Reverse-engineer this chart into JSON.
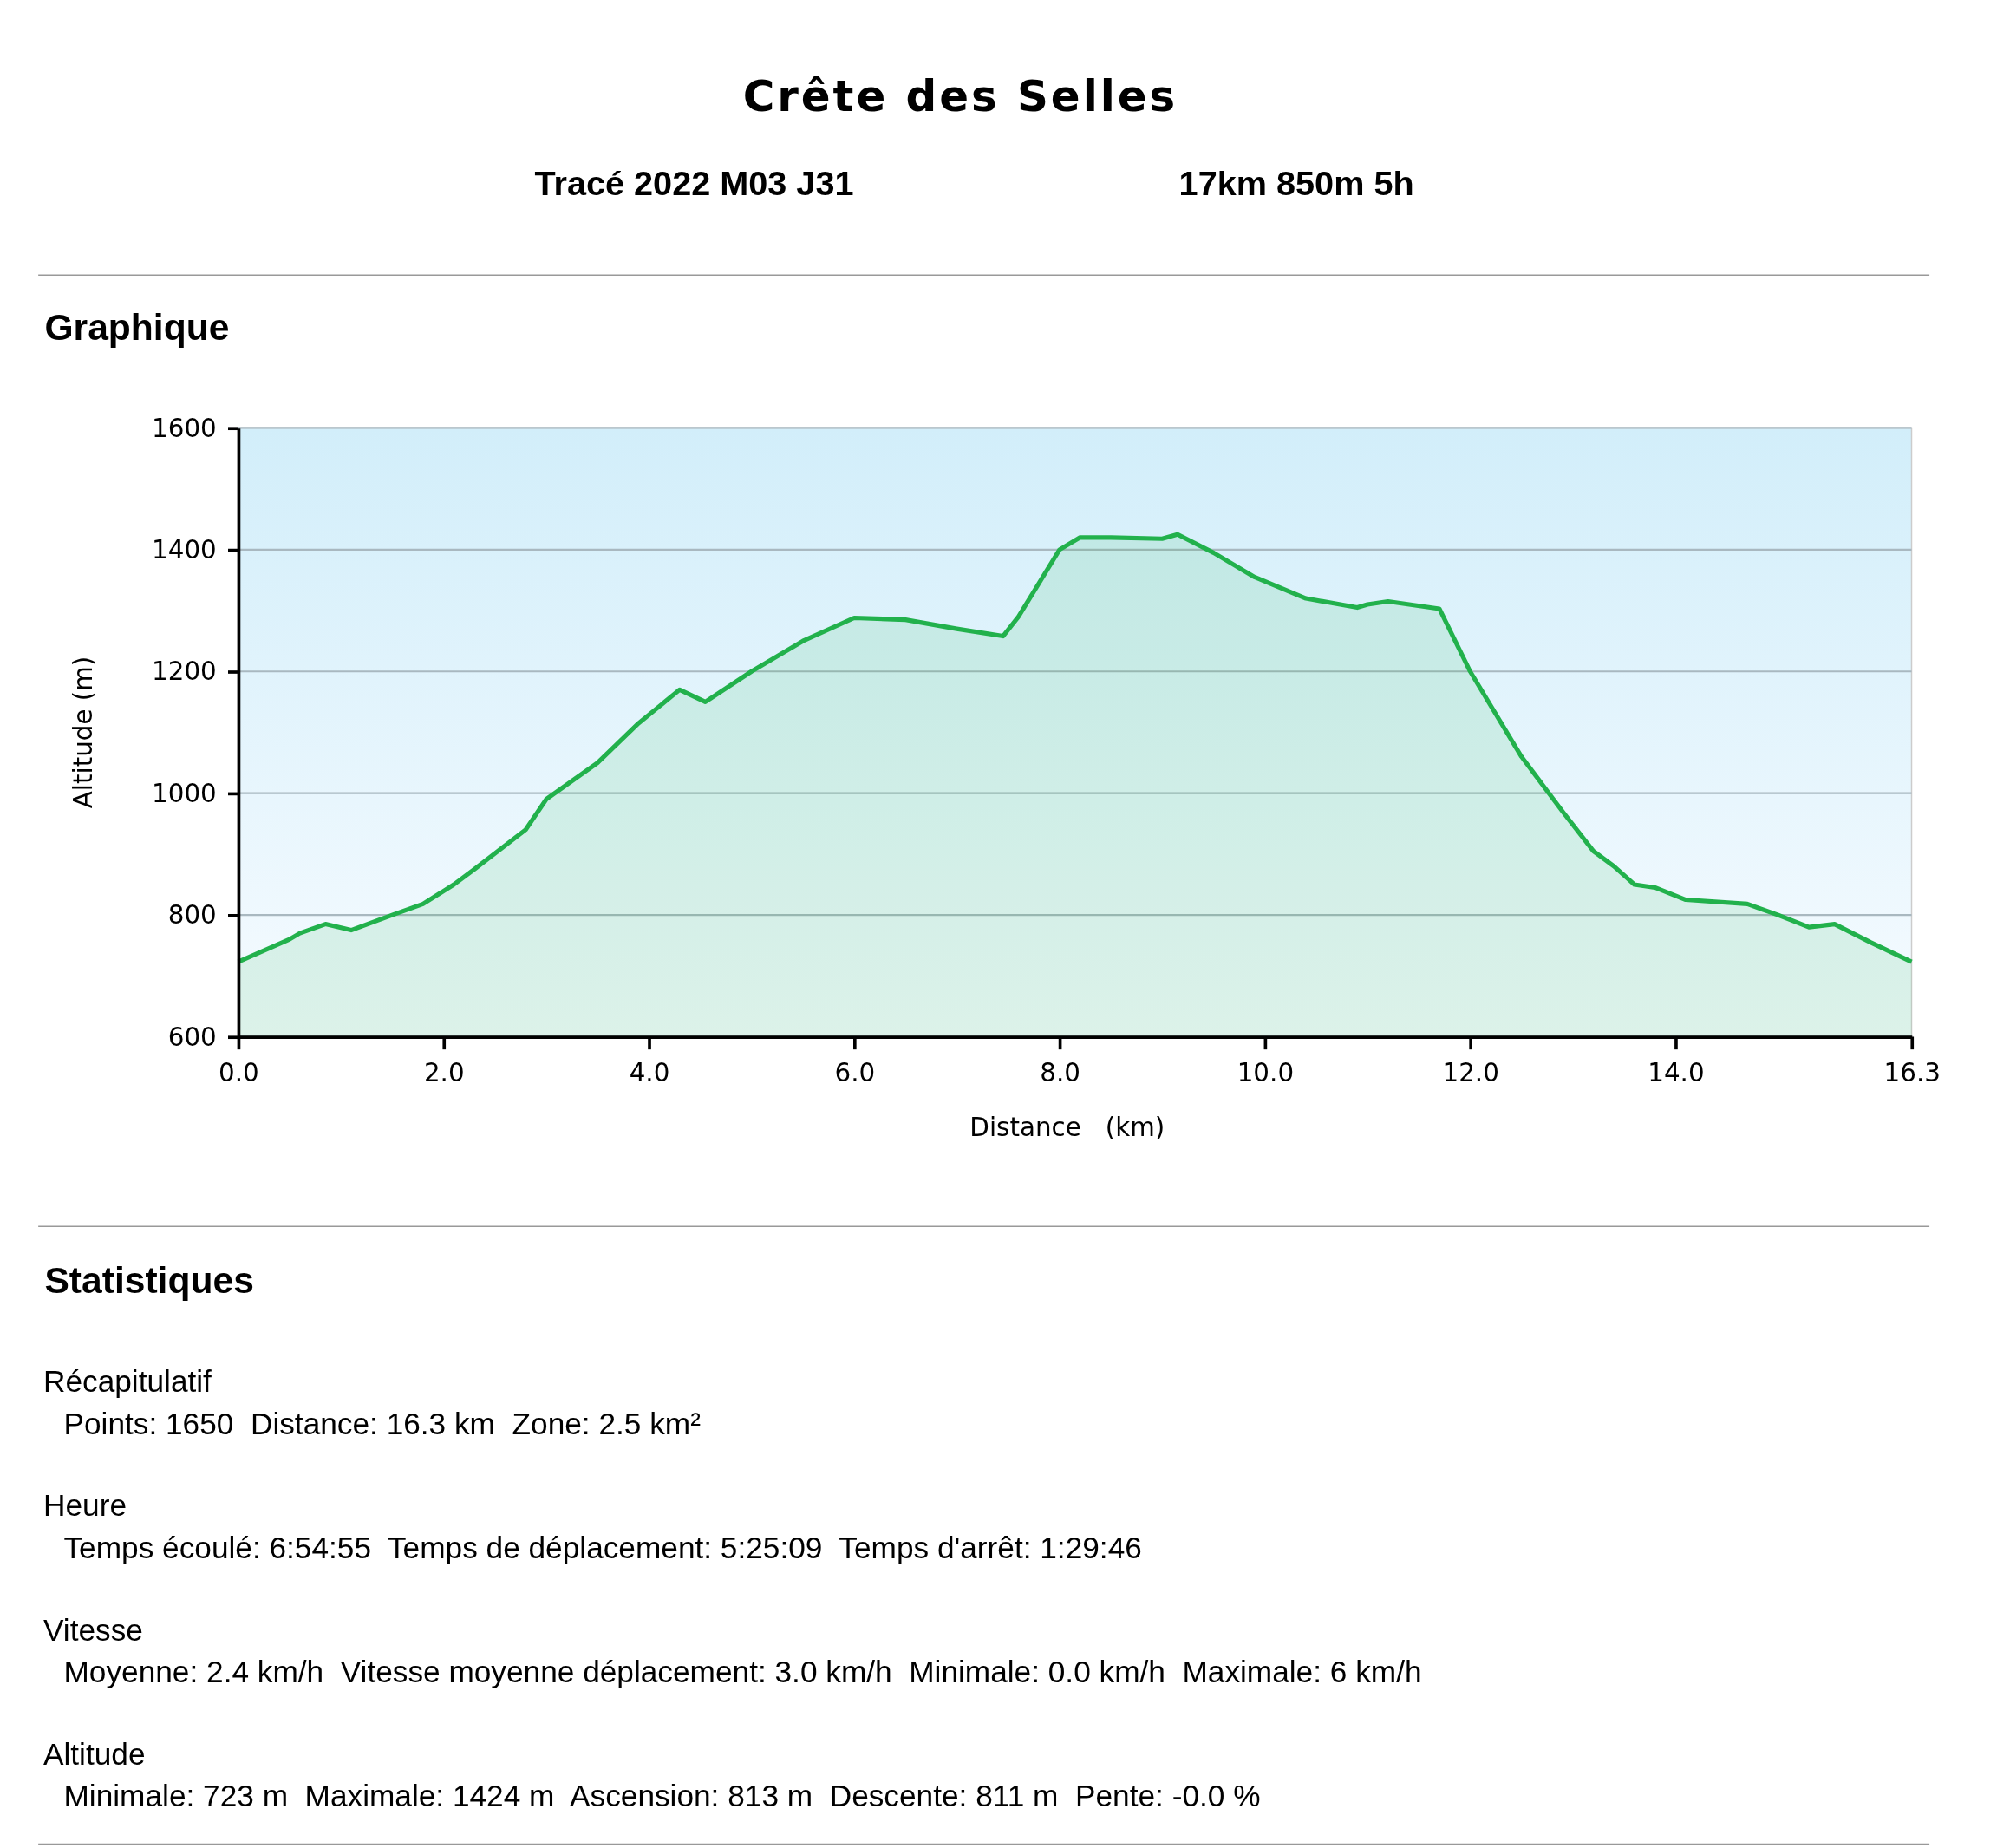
{
  "chart_data": {
    "type": "area",
    "title": "Crête des Selles",
    "subtitle": "Tracé 2022 M03 J31",
    "xlabel": "Distance   (km)",
    "ylabel": "Altitude (m)",
    "annotations": [
      "17km 850m 5h",
      "Graphique",
      "Statistiques",
      "Récapitulatif",
      "Points: 1650  Distance: 16.3 km  Zone: 2.5 km²",
      "Heure",
      "Temps écoulé: 6:54:55  Temps de déplacement: 5:25:09  Temps d'arrêt: 1:29:46",
      "Vitesse",
      "Moyenne: 2.4 km/h  Vitesse moyenne déplacement: 3.0 km/h  Minimale: 0.0 km/h  Maximale: 6 km/h",
      "Altitude",
      "Minimale: 723 m  Maximale: 1424 m  Ascension: 813 m  Descente: 811 m  Pente: -0.0 %"
    ],
    "x": [
      0,
      0.5,
      0.6,
      0.85,
      1.1,
      1.5,
      1.8,
      2.1,
      2.3,
      2.8,
      3.0,
      3.5,
      3.9,
      4.3,
      4.55,
      5.0,
      5.5,
      6.0,
      6.5,
      7.0,
      7.45,
      7.6,
      8.0,
      8.2,
      8.5,
      9.0,
      9.15,
      9.5,
      9.9,
      10.4,
      10.9,
      11.0,
      11.2,
      11.7,
      12.0,
      12.5,
      12.9,
      13.2,
      13.4,
      13.6,
      13.8,
      14.1,
      14.7,
      15.0,
      15.3,
      15.55,
      15.9,
      16.3
    ],
    "series": [
      {
        "color": "#22b14c",
        "values": [
          723,
          760,
          770,
          785,
          775,
          800,
          818,
          850,
          875,
          940,
          990,
          1050,
          1115,
          1170,
          1150,
          1200,
          1250,
          1288,
          1285,
          1270,
          1258,
          1290,
          1400,
          1420,
          1420,
          1418,
          1425,
          1395,
          1355,
          1320,
          1305,
          1310,
          1315,
          1303,
          1200,
          1060,
          970,
          905,
          880,
          850,
          845,
          825,
          818,
          800,
          780,
          785,
          755,
          723
        ]
      }
    ],
    "xlim": [
      0,
      16.3
    ],
    "xticks": [
      {
        "value": 0,
        "label": "0.0"
      },
      {
        "value": 2,
        "label": "2.0"
      },
      {
        "value": 4,
        "label": "4.0"
      },
      {
        "value": 6,
        "label": "6.0"
      },
      {
        "value": 8,
        "label": "8.0"
      },
      {
        "value": 10,
        "label": "10.0"
      },
      {
        "value": 12,
        "label": "12.0"
      },
      {
        "value": 14,
        "label": "14.0"
      },
      {
        "value": 16.3,
        "label": "16.3"
      }
    ],
    "ylim": [
      600,
      1600
    ],
    "yticks": [
      600,
      800,
      1000,
      1200,
      1400,
      1600
    ],
    "grid": "y",
    "marker": "none",
    "line_style": "solid"
  }
}
